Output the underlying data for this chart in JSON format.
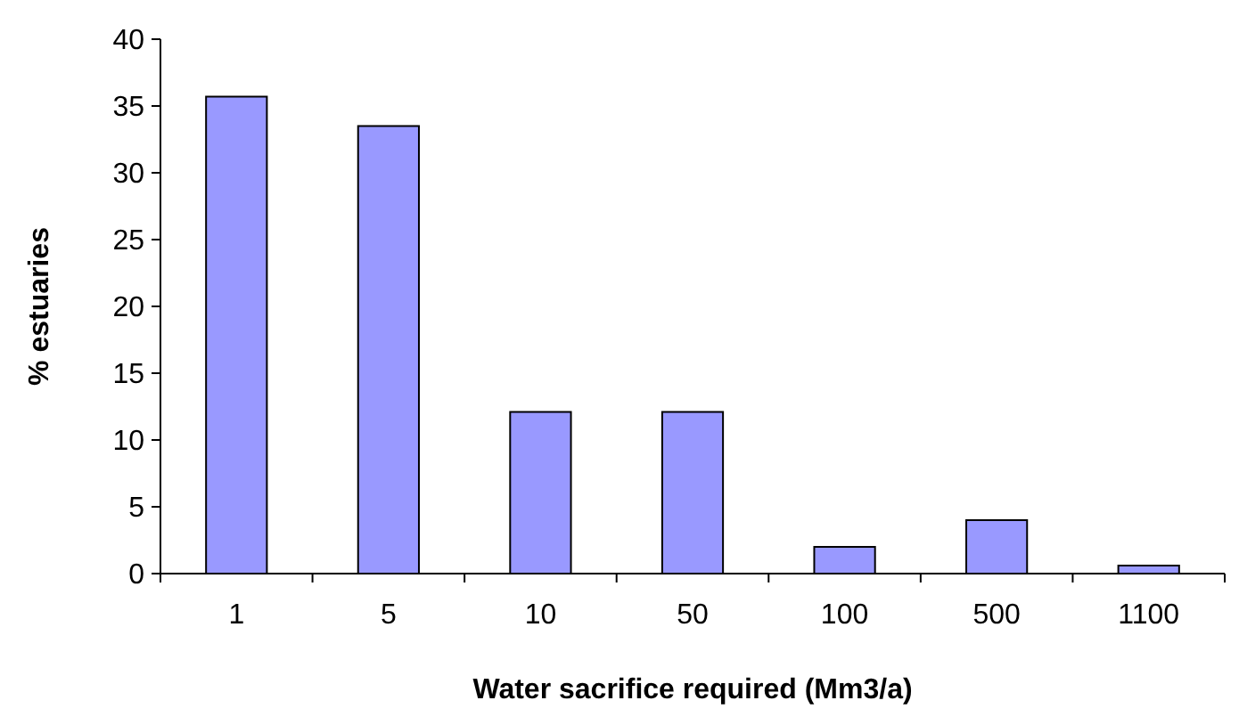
{
  "chart_data": {
    "type": "bar",
    "xlabel": "Water sacrifice required (Mm3/a)",
    "ylabel": "% estuaries",
    "categories": [
      "1",
      "5",
      "10",
      "50",
      "100",
      "500",
      "1100"
    ],
    "values": [
      35.7,
      33.5,
      12.1,
      12.1,
      2,
      4,
      0.6
    ],
    "color": "#9999ff",
    "ylim": [
      0,
      40
    ],
    "yticks": [
      0,
      5,
      10,
      15,
      20,
      25,
      30,
      35,
      40
    ],
    "grid": false
  }
}
